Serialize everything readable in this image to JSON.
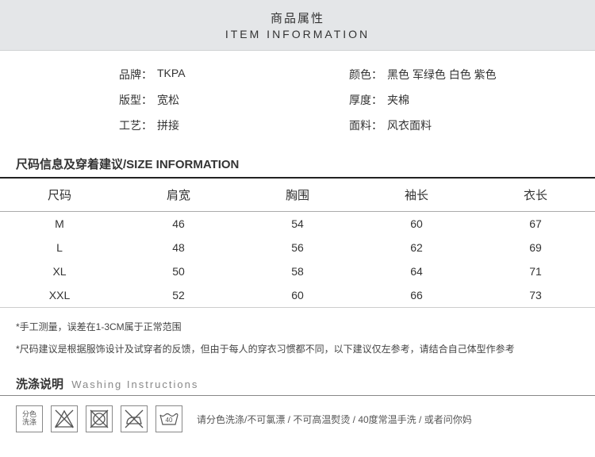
{
  "header": {
    "title_cn": "商品属性",
    "title_en": "ITEM INFORMATION"
  },
  "attributes": {
    "left": [
      {
        "label": "品牌：",
        "value": "TKPA"
      },
      {
        "label": "版型：",
        "value": "宽松"
      },
      {
        "label": "工艺：",
        "value": "拼接"
      }
    ],
    "right": [
      {
        "label": "颜色：",
        "value": "黑色  军绿色  白色  紫色"
      },
      {
        "label": "厚度：",
        "value": "夹棉"
      },
      {
        "label": "面料：",
        "value": "风衣面料"
      }
    ]
  },
  "size_section": {
    "title": "尺码信息及穿着建议/SIZE INFORMATION",
    "columns": [
      "尺码",
      "肩宽",
      "胸围",
      "袖长",
      "衣长"
    ],
    "rows": [
      [
        "M",
        "46",
        "54",
        "60",
        "67"
      ],
      [
        "L",
        "48",
        "56",
        "62",
        "69"
      ],
      [
        "XL",
        "50",
        "58",
        "64",
        "71"
      ],
      [
        "XXL",
        "52",
        "60",
        "66",
        "73"
      ]
    ]
  },
  "notes": [
    "*手工测量，误差在1-3CM属于正常范围",
    "*尺码建议是根据服饰设计及试穿者的反馈，但由于每人的穿衣习惯都不同，以下建议仅左参考，请结合自己体型作参考"
  ],
  "washing": {
    "title_cn": "洗涤说明",
    "title_en": "Washing Instructions",
    "icons": [
      {
        "name": "separate-wash-icon",
        "label": "分色\n洗涤"
      },
      {
        "name": "no-bleach-icon",
        "label": ""
      },
      {
        "name": "no-tumble-dry-icon",
        "label": ""
      },
      {
        "name": "no-hot-iron-icon",
        "label": ""
      },
      {
        "name": "wash-40-icon",
        "label": "40"
      }
    ],
    "text": "请分色洗涤/不可氯漂 / 不可高温熨烫 / 40度常温手洗 / 或者问你妈"
  },
  "colors": {
    "header_bg": "#e4e6e8",
    "border_dark": "#222222",
    "border_light": "#cccccc",
    "text": "#333333",
    "muted": "#888888"
  }
}
